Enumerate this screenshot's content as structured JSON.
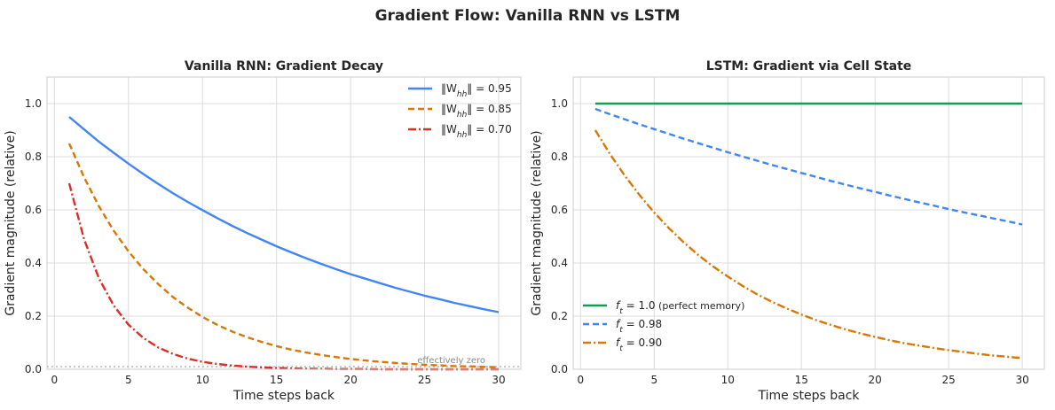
{
  "figure": {
    "title": "Gradient Flow: Vanilla RNN vs LSTM"
  },
  "chart_data": [
    {
      "type": "line",
      "title": "Vanilla RNN: Gradient Decay",
      "xlabel": "Time steps back",
      "ylabel": "Gradient magnitude (relative)",
      "xlim": [
        -0.5,
        31.5
      ],
      "ylim": [
        0,
        1.1
      ],
      "xticks": [
        0,
        5,
        10,
        15,
        20,
        25,
        30
      ],
      "yticks": [
        0.0,
        0.2,
        0.4,
        0.6,
        0.8,
        1.0
      ],
      "grid": true,
      "legend_position": "top-right",
      "x": [
        1,
        2,
        3,
        4,
        5,
        6,
        7,
        8,
        9,
        10,
        11,
        12,
        13,
        14,
        15,
        16,
        17,
        18,
        19,
        20,
        21,
        22,
        23,
        24,
        25,
        26,
        27,
        28,
        29,
        30
      ],
      "series": [
        {
          "name": "‖W_hh‖ = 0.95",
          "color": "#4285f4",
          "dash": "solid",
          "values": [
            0.95,
            0.903,
            0.857,
            0.815,
            0.774,
            0.735,
            0.698,
            0.663,
            0.63,
            0.599,
            0.569,
            0.54,
            0.513,
            0.488,
            0.463,
            0.44,
            0.418,
            0.397,
            0.377,
            0.358,
            0.341,
            0.324,
            0.307,
            0.292,
            0.277,
            0.264,
            0.25,
            0.238,
            0.226,
            0.215
          ]
        },
        {
          "name": "‖W_hh‖ = 0.85",
          "color": "#d97706",
          "dash": "dashed",
          "values": [
            0.85,
            0.723,
            0.614,
            0.522,
            0.444,
            0.377,
            0.321,
            0.272,
            0.232,
            0.197,
            0.167,
            0.142,
            0.121,
            0.103,
            0.087,
            0.074,
            0.063,
            0.054,
            0.046,
            0.039,
            0.033,
            0.028,
            0.024,
            0.02,
            0.017,
            0.015,
            0.012,
            0.011,
            0.009,
            0.008
          ]
        },
        {
          "name": "‖W_hh‖ = 0.70",
          "color": "#d93025",
          "dash": "dashdot",
          "values": [
            0.7,
            0.49,
            0.343,
            0.24,
            0.168,
            0.118,
            0.082,
            0.058,
            0.04,
            0.028,
            0.02,
            0.014,
            0.01,
            0.007,
            0.005,
            0.003,
            0.002,
            0.002,
            0.001,
            0.001,
            0.001,
            0.0,
            0.0,
            0.0,
            0.0,
            0.0,
            0.0,
            0.0,
            0.0,
            0.0
          ]
        }
      ],
      "reference_line": {
        "y": 0.01,
        "color": "#aaaaaa",
        "style": "dotted",
        "label": "effectively zero"
      }
    },
    {
      "type": "line",
      "title": "LSTM: Gradient via Cell State",
      "xlabel": "Time steps back",
      "ylabel": "Gradient magnitude (relative)",
      "xlim": [
        -0.5,
        31.5
      ],
      "ylim": [
        0,
        1.1
      ],
      "xticks": [
        0,
        5,
        10,
        15,
        20,
        25,
        30
      ],
      "yticks": [
        0.0,
        0.2,
        0.4,
        0.6,
        0.8,
        1.0
      ],
      "grid": true,
      "legend_position": "bottom-left",
      "x": [
        1,
        2,
        3,
        4,
        5,
        6,
        7,
        8,
        9,
        10,
        11,
        12,
        13,
        14,
        15,
        16,
        17,
        18,
        19,
        20,
        21,
        22,
        23,
        24,
        25,
        26,
        27,
        28,
        29,
        30
      ],
      "series": [
        {
          "name": "f_t = 1.0 (perfect memory)",
          "color": "#0f9d58",
          "dash": "solid",
          "values": [
            1,
            1,
            1,
            1,
            1,
            1,
            1,
            1,
            1,
            1,
            1,
            1,
            1,
            1,
            1,
            1,
            1,
            1,
            1,
            1,
            1,
            1,
            1,
            1,
            1,
            1,
            1,
            1,
            1,
            1
          ]
        },
        {
          "name": "f_t = 0.98",
          "color": "#4285f4",
          "dash": "dashed",
          "values": [
            0.98,
            0.96,
            0.941,
            0.922,
            0.904,
            0.886,
            0.868,
            0.851,
            0.834,
            0.817,
            0.801,
            0.785,
            0.769,
            0.754,
            0.739,
            0.724,
            0.709,
            0.695,
            0.681,
            0.668,
            0.654,
            0.641,
            0.628,
            0.616,
            0.603,
            0.591,
            0.58,
            0.568,
            0.557,
            0.545
          ]
        },
        {
          "name": "f_t = 0.90",
          "color": "#d97706",
          "dash": "dashdot",
          "values": [
            0.9,
            0.81,
            0.729,
            0.656,
            0.59,
            0.531,
            0.478,
            0.43,
            0.387,
            0.349,
            0.314,
            0.282,
            0.254,
            0.229,
            0.206,
            0.185,
            0.167,
            0.15,
            0.135,
            0.122,
            0.109,
            0.098,
            0.089,
            0.08,
            0.072,
            0.065,
            0.058,
            0.052,
            0.047,
            0.042
          ]
        }
      ]
    }
  ]
}
